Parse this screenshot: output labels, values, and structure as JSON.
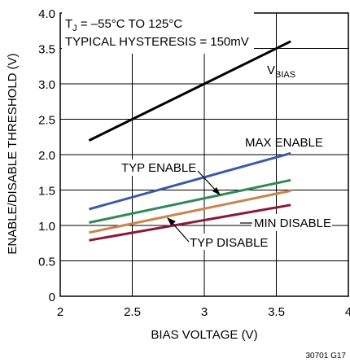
{
  "chart_data": {
    "type": "line",
    "xlabel": "BIAS VOLTAGE (V)",
    "ylabel": "ENABLE/DISABLE THRESHOLD (V)",
    "xlim": [
      2,
      4
    ],
    "ylim": [
      0,
      4
    ],
    "x_ticks": [
      "2",
      "2.5",
      "3",
      "3.5",
      "4"
    ],
    "y_ticks": [
      "0",
      "0.5",
      "1.0",
      "1.5",
      "2.0",
      "2.5",
      "3.0",
      "3.5",
      "4.0"
    ],
    "grid": true,
    "annotations": {
      "condition_line1_prefix": "T",
      "condition_line1_sub": "J",
      "condition_line1_rest": " = –55°C TO 125°C",
      "condition_line2": "TYPICAL HYSTERESIS = 150mV"
    },
    "figure_id": "30701 G17",
    "series": [
      {
        "label_main": "V",
        "label_sub": "BIAS",
        "color": "#000000",
        "x": [
          2.2,
          3.6
        ],
        "y": [
          2.2,
          3.6
        ]
      },
      {
        "label_main": "MAX ENABLE",
        "label_sub": "",
        "color": "#3b5ba6",
        "x": [
          2.2,
          3.6
        ],
        "y": [
          1.23,
          2.02
        ]
      },
      {
        "label_main": "TYP ENABLE",
        "label_sub": "",
        "color": "#2e8b57",
        "x": [
          2.2,
          3.6
        ],
        "y": [
          1.04,
          1.64
        ]
      },
      {
        "label_main": "TYP DISABLE",
        "label_sub": "",
        "color": "#c8864a",
        "x": [
          2.2,
          3.6
        ],
        "y": [
          0.9,
          1.49
        ]
      },
      {
        "label_main": "MIN DISABLE",
        "label_sub": "",
        "color": "#8b1a3a",
        "x": [
          2.2,
          3.6
        ],
        "y": [
          0.79,
          1.29
        ]
      }
    ]
  }
}
